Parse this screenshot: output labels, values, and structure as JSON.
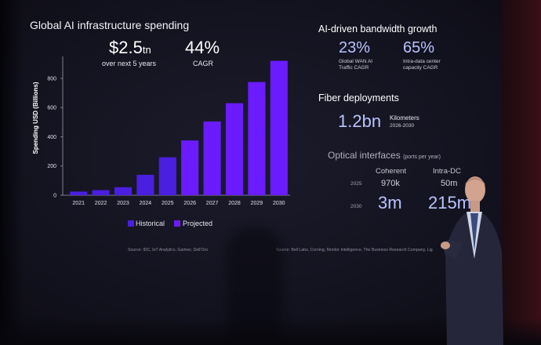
{
  "chart_data": {
    "type": "bar",
    "title": "Global AI infrastructure spending",
    "ylabel": "Spending USD (Billions)",
    "ylim": [
      0,
      950
    ],
    "yticks": [
      0,
      200,
      400,
      600,
      800
    ],
    "categories": [
      "2021",
      "2022",
      "2023",
      "2024",
      "2025",
      "2026",
      "2027",
      "2028",
      "2029",
      "2030"
    ],
    "values": [
      25,
      35,
      55,
      140,
      260,
      375,
      505,
      630,
      775,
      920
    ],
    "historical_count": 5,
    "colors": {
      "historical": "#4a1fe0",
      "projected": "#6a1cff"
    },
    "legend": [
      "Historical",
      "Projected"
    ],
    "legend_position": "bottom"
  },
  "left_stats": [
    {
      "value_main": "$2.5",
      "value_suffix": "tn",
      "label": "over next 5 years"
    },
    {
      "value_main": "44%",
      "value_suffix": "",
      "label": "CAGR"
    }
  ],
  "left_source": "Source: IDC, IoT Analytics, Gartner, Dell'Oro",
  "bandwidth": {
    "title": "AI-driven bandwidth growth",
    "items": [
      {
        "value": "23%",
        "label1": "Global WAN AI",
        "label2": "Traffic CAGR"
      },
      {
        "value": "65%",
        "label1": "Intra-data center",
        "label2": "capacity CAGR"
      }
    ]
  },
  "fiber": {
    "title": "Fiber deployments",
    "value": "1.2bn",
    "unit": "Kilometers",
    "years": "2026-2030"
  },
  "optical": {
    "title": "Optical interfaces",
    "title_note": "(ports per year)",
    "col1": "Coherent",
    "col2": "Intra-DC",
    "rows": [
      {
        "year": "2025",
        "c1": "970k",
        "c2": "50m"
      },
      {
        "year": "2030",
        "c1": "3m",
        "c2": "215m"
      }
    ]
  },
  "right_source": "Source: Bell Labs, Corning, Mordor Intelligence, The Business Research Company, Lig",
  "colors": {
    "accent_light": "#b8c4ff"
  }
}
